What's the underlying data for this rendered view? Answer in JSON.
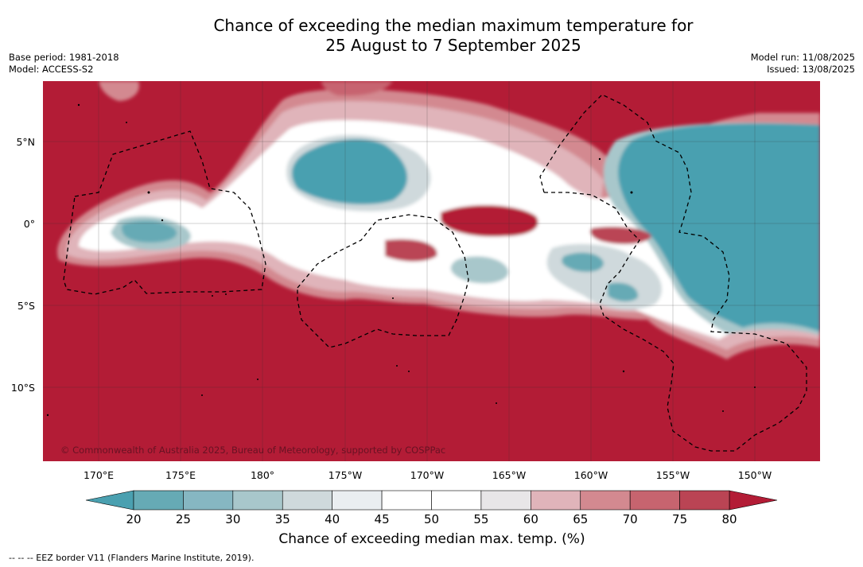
{
  "title_line1": "Chance of exceeding the median maximum temperature for",
  "title_line2": "25 August to 7 September 2025",
  "base_period": "Base period: 1981-2018",
  "model": "Model: ACCESS-S2",
  "model_run": "Model run: 11/08/2025",
  "issued": "Issued: 13/08/2025",
  "copyright": "© Commonwealth of Australia 2025, Bureau of Meteorology, supported by COSPPac",
  "lat_labels": [
    "5°N",
    "0°",
    "5°S",
    "10°S"
  ],
  "lon_labels": [
    "170°E",
    "175°E",
    "180°",
    "175°W",
    "170°W",
    "165°W",
    "160°W",
    "155°W",
    "150°W"
  ],
  "colorbar": {
    "ticks": [
      "20",
      "25",
      "30",
      "35",
      "40",
      "45",
      "50",
      "55",
      "60",
      "65",
      "70",
      "75",
      "80"
    ],
    "label": "Chance of exceeding median max. temp. (%)",
    "colors": [
      "#66aab5",
      "#86b7c2",
      "#a8c7cb",
      "#cfd9dc",
      "#eaeef1",
      "#ffffff",
      "#ffffff",
      "#e8e6e8",
      "#e0b4ba",
      "#d38990",
      "#c7646f",
      "#ba4454"
    ],
    "under_color": "#4aa0b0",
    "over_color": "#b31c36"
  },
  "legend_note": "--  --  -- EEZ border V11 (Flanders Marine Institute, 2019).",
  "palette": {
    "hot": "#b31c36",
    "cool": "#4aa0b0",
    "neutral": "#ffffff"
  }
}
